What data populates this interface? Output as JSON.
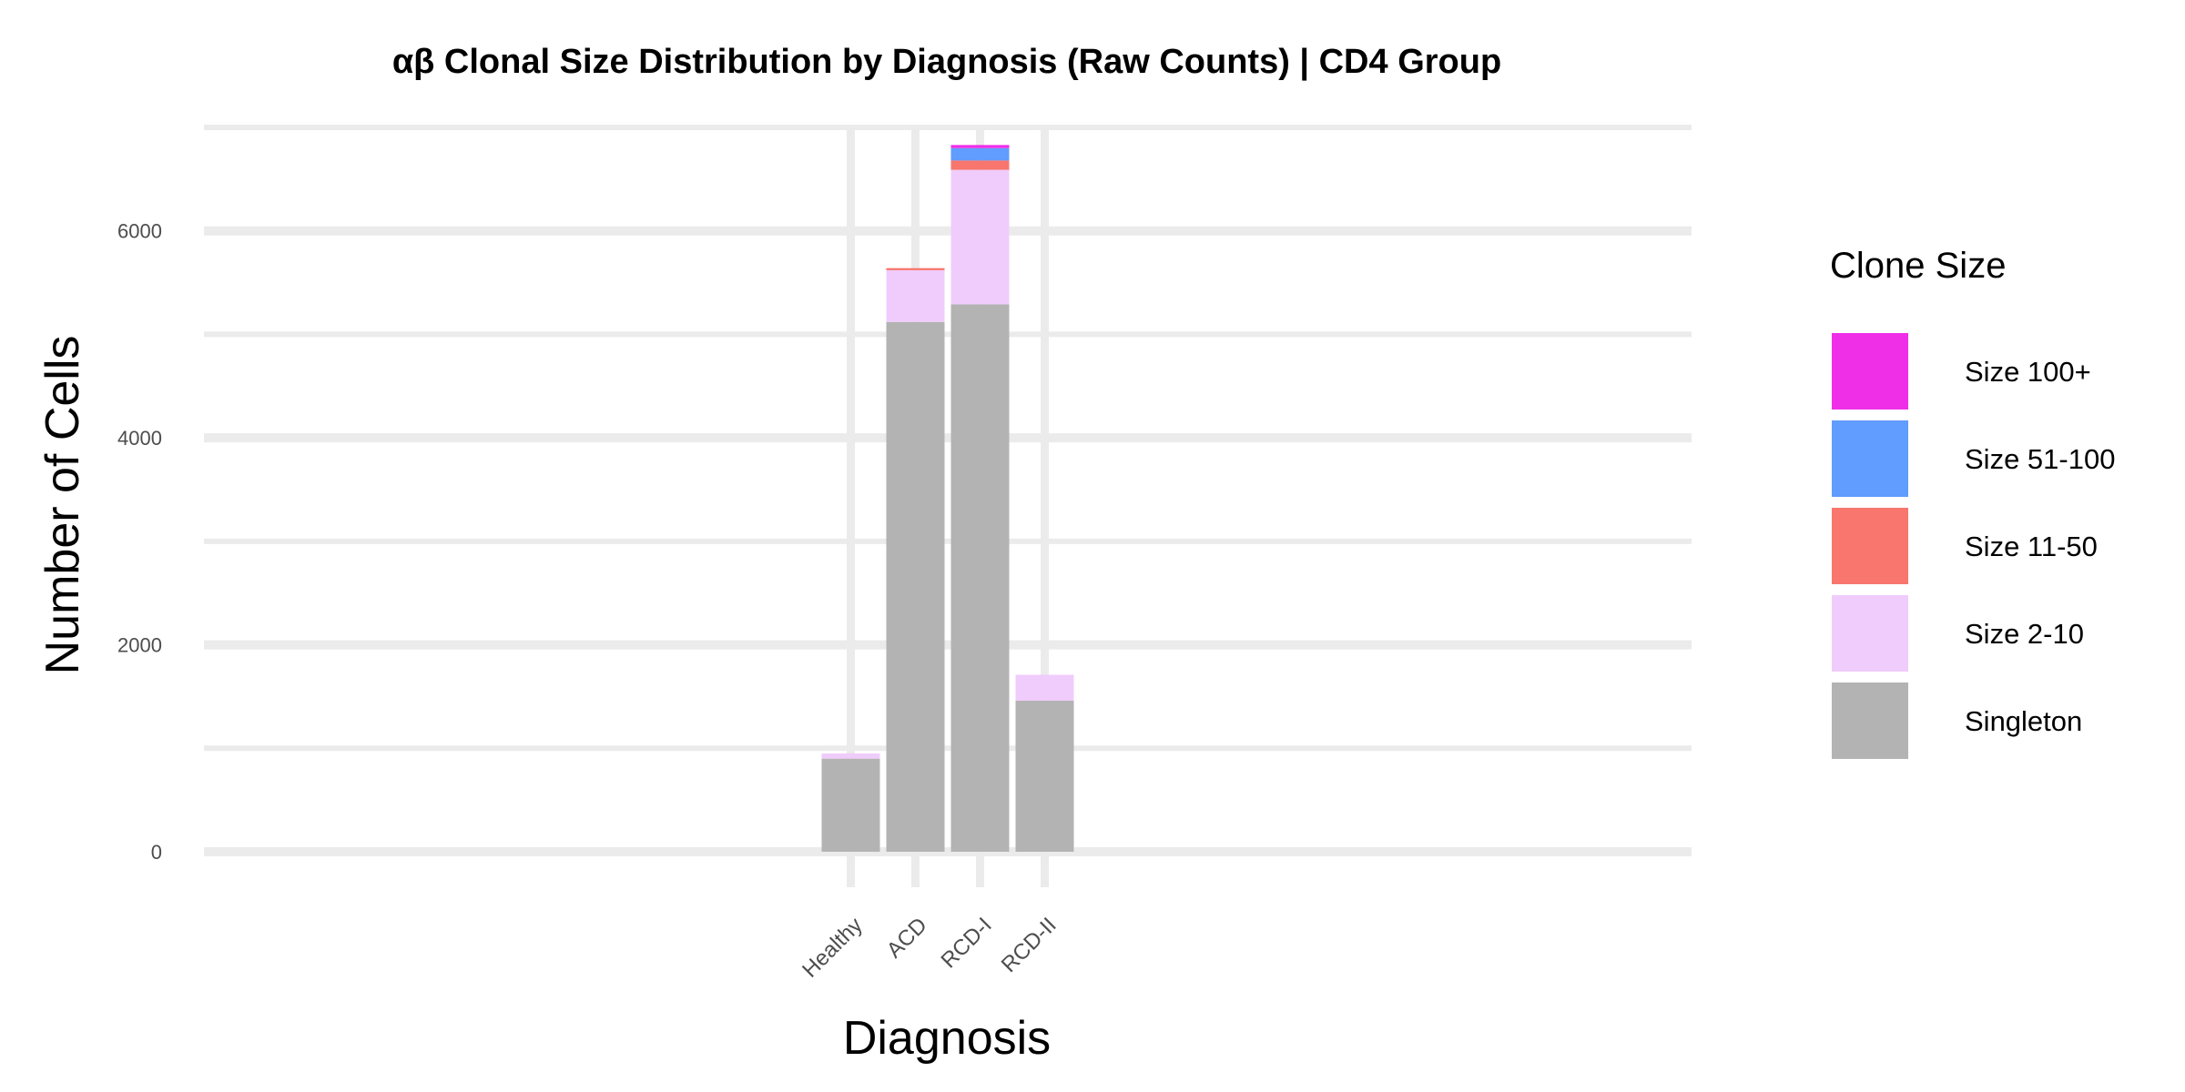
{
  "chart_data": {
    "type": "bar",
    "stacked": true,
    "title": "αβ Clonal Size Distribution by Diagnosis (Raw Counts) | CD4 Group",
    "xlabel": "Diagnosis",
    "ylabel": "Number of Cells",
    "categories": [
      "Healthy",
      "ACD",
      "RCD-I",
      "RCD-II"
    ],
    "ylim": [
      0,
      7000
    ],
    "yticks": [
      0,
      2000,
      4000,
      6000
    ],
    "grid": true,
    "legend": {
      "title": "Clone Size",
      "position": "right"
    },
    "series": [
      {
        "name": "Singleton",
        "color": "#B3B3B3",
        "values": [
          900,
          5120,
          5290,
          1460
        ]
      },
      {
        "name": "Size 2-10",
        "color": "#F0CCFC",
        "values": [
          50,
          500,
          1300,
          250
        ]
      },
      {
        "name": "Size 11-50",
        "color": "#F8766D",
        "values": [
          0,
          20,
          90,
          0
        ]
      },
      {
        "name": "Size 51-100",
        "color": "#619CFF",
        "values": [
          0,
          0,
          120,
          0
        ]
      },
      {
        "name": "Size 100+",
        "color": "#EF2FE8",
        "values": [
          0,
          0,
          30,
          0
        ]
      }
    ]
  }
}
